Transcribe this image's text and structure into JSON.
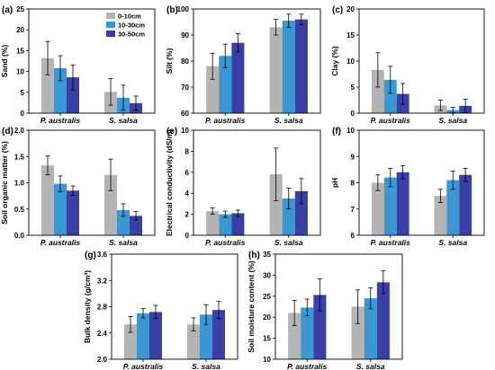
{
  "colors": {
    "0-10cm": "#b4b4b4",
    "10-30cm": "#3b97d3",
    "30-50cm": "#3b3ea3"
  },
  "legend": {
    "items": [
      "0-10cm",
      "10-30cm",
      "30-50cm"
    ],
    "placement": "top-right of panel (a)"
  },
  "chart_data": [
    {
      "panel": "(a)",
      "type": "bar",
      "ylabel": "Sand (%)",
      "ylim": [
        0,
        25
      ],
      "yticks": [
        0,
        5,
        10,
        15,
        20,
        25
      ],
      "categories": [
        "P. australis",
        "S. salsa"
      ],
      "series": [
        {
          "name": "0-10cm",
          "values": [
            13.2,
            5.1
          ],
          "errors": [
            4.0,
            3.2
          ]
        },
        {
          "name": "10-30cm",
          "values": [
            10.8,
            3.7
          ],
          "errors": [
            3.0,
            3.0
          ]
        },
        {
          "name": "30-50cm",
          "values": [
            8.6,
            2.4
          ],
          "errors": [
            3.0,
            1.7
          ]
        }
      ]
    },
    {
      "panel": "(b)",
      "type": "bar",
      "ylabel": "Silt (%)",
      "ylim": [
        60,
        100
      ],
      "yticks": [
        60,
        70,
        80,
        90,
        100
      ],
      "categories": [
        "P. australis",
        "S. salsa"
      ],
      "series": [
        {
          "name": "0-10cm",
          "values": [
            78,
            93
          ],
          "errors": [
            5,
            3
          ]
        },
        {
          "name": "10-30cm",
          "values": [
            82,
            95.5
          ],
          "errors": [
            4.5,
            2.5
          ]
        },
        {
          "name": "30-50cm",
          "values": [
            87,
            96
          ],
          "errors": [
            3.5,
            2
          ]
        }
      ]
    },
    {
      "panel": "(c)",
      "type": "bar",
      "ylabel": "Clay (%)",
      "ylim": [
        0,
        20
      ],
      "yticks": [
        0,
        5,
        10,
        15,
        20
      ],
      "categories": [
        "P. australis",
        "S. salsa"
      ],
      "series": [
        {
          "name": "0-10cm",
          "values": [
            8.3,
            1.5
          ],
          "errors": [
            3.3,
            1.0
          ]
        },
        {
          "name": "10-30cm",
          "values": [
            6.4,
            0.6
          ],
          "errors": [
            2.6,
            0.5
          ]
        },
        {
          "name": "30-50cm",
          "values": [
            3.7,
            1.4
          ],
          "errors": [
            2.0,
            1.3
          ]
        }
      ]
    },
    {
      "panel": "(d)",
      "type": "bar",
      "ylabel": "Soil organic matter (%)",
      "ylim": [
        0,
        2
      ],
      "yticks": [
        0,
        0.5,
        1,
        1.5,
        2
      ],
      "ytick_labels": [
        "0.0",
        "0.5",
        "1.0",
        "1.5",
        "2.0"
      ],
      "categories": [
        "P. australis",
        "S. salsa"
      ],
      "series": [
        {
          "name": "0-10cm",
          "values": [
            1.33,
            1.15
          ],
          "errors": [
            0.18,
            0.3
          ]
        },
        {
          "name": "10-30cm",
          "values": [
            0.98,
            0.48
          ],
          "errors": [
            0.15,
            0.12
          ]
        },
        {
          "name": "30-50cm",
          "values": [
            0.85,
            0.37
          ],
          "errors": [
            0.09,
            0.08
          ]
        }
      ]
    },
    {
      "panel": "(e)",
      "type": "bar",
      "ylabel": "Electrical conductivity (dS/m)",
      "ylim": [
        0,
        10
      ],
      "yticks": [
        0,
        2,
        4,
        6,
        8,
        10
      ],
      "categories": [
        "P. australis",
        "S. salsa"
      ],
      "series": [
        {
          "name": "0-10cm",
          "values": [
            2.3,
            5.8
          ],
          "errors": [
            0.3,
            2.5
          ]
        },
        {
          "name": "10-30cm",
          "values": [
            2.0,
            3.5
          ],
          "errors": [
            0.3,
            1.0
          ]
        },
        {
          "name": "30-50cm",
          "values": [
            2.1,
            4.2
          ],
          "errors": [
            0.3,
            1.2
          ]
        }
      ]
    },
    {
      "panel": "(f)",
      "type": "bar",
      "ylabel": "pH",
      "ylim": [
        6,
        10
      ],
      "yticks": [
        6,
        7,
        8,
        9,
        10
      ],
      "categories": [
        "P. australis",
        "S. salsa"
      ],
      "series": [
        {
          "name": "0-10cm",
          "values": [
            8.0,
            7.5
          ],
          "errors": [
            0.3,
            0.25
          ]
        },
        {
          "name": "10-30cm",
          "values": [
            8.2,
            8.1
          ],
          "errors": [
            0.35,
            0.35
          ]
        },
        {
          "name": "30-50cm",
          "values": [
            8.4,
            8.3
          ],
          "errors": [
            0.25,
            0.25
          ]
        }
      ]
    },
    {
      "panel": "(g)",
      "type": "bar",
      "ylabel": "Bulk density (g/cm³)",
      "ylim": [
        2.0,
        3.6
      ],
      "yticks": [
        2.0,
        2.4,
        2.8,
        3.2,
        3.6
      ],
      "ytick_labels": [
        "2.0",
        "2.4",
        "2.8",
        "3.2",
        "3.6"
      ],
      "categories": [
        "P. australis",
        "S. salsa"
      ],
      "series": [
        {
          "name": "0-10cm",
          "values": [
            2.53,
            2.53
          ],
          "errors": [
            0.12,
            0.1
          ]
        },
        {
          "name": "10-30cm",
          "values": [
            2.7,
            2.68
          ],
          "errors": [
            0.07,
            0.15
          ]
        },
        {
          "name": "30-50cm",
          "values": [
            2.72,
            2.75
          ],
          "errors": [
            0.1,
            0.13
          ]
        }
      ]
    },
    {
      "panel": "(h)",
      "type": "bar",
      "ylabel": "Soil moisture content (%)",
      "ylim": [
        10,
        35
      ],
      "yticks": [
        10,
        15,
        20,
        25,
        30,
        35
      ],
      "categories": [
        "P. australis",
        "S. salsa"
      ],
      "series": [
        {
          "name": "0-10cm",
          "values": [
            21,
            22.5
          ],
          "errors": [
            3,
            4
          ]
        },
        {
          "name": "10-30cm",
          "values": [
            22.3,
            24.5
          ],
          "errors": [
            2,
            2.5
          ]
        },
        {
          "name": "30-50cm",
          "values": [
            25.3,
            28.3
          ],
          "errors": [
            3.8,
            2.7
          ]
        }
      ]
    }
  ]
}
